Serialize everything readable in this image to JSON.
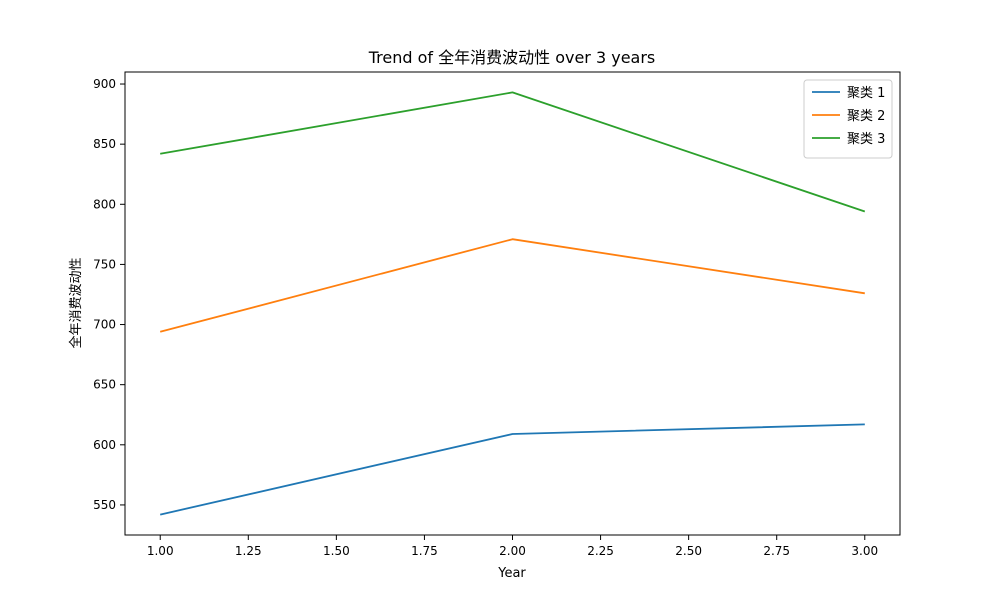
{
  "chart_data": {
    "type": "line",
    "title": "Trend of 全年消费波动性 over 3 years",
    "xlabel": "Year",
    "ylabel": "全年消费波动性",
    "x": [
      1.0,
      2.0,
      3.0
    ],
    "xlim": [
      0.9,
      3.1
    ],
    "ylim": [
      525,
      910
    ],
    "xticks": [
      1.0,
      1.25,
      1.5,
      1.75,
      2.0,
      2.25,
      2.5,
      2.75,
      3.0
    ],
    "xtick_labels": [
      "1.00",
      "1.25",
      "1.50",
      "1.75",
      "2.00",
      "2.25",
      "2.50",
      "2.75",
      "3.00"
    ],
    "yticks": [
      550,
      600,
      650,
      700,
      750,
      800,
      850,
      900
    ],
    "ytick_labels": [
      "550",
      "600",
      "650",
      "700",
      "750",
      "800",
      "850",
      "900"
    ],
    "grid": false,
    "legend_position": "top-right",
    "series": [
      {
        "name": "聚类 1",
        "color": "#1f77b4",
        "values": [
          542,
          609,
          617
        ]
      },
      {
        "name": "聚类 2",
        "color": "#ff7f0e",
        "values": [
          694,
          771,
          726
        ]
      },
      {
        "name": "聚类 3",
        "color": "#2ca02c",
        "values": [
          842,
          893,
          794
        ]
      }
    ]
  }
}
